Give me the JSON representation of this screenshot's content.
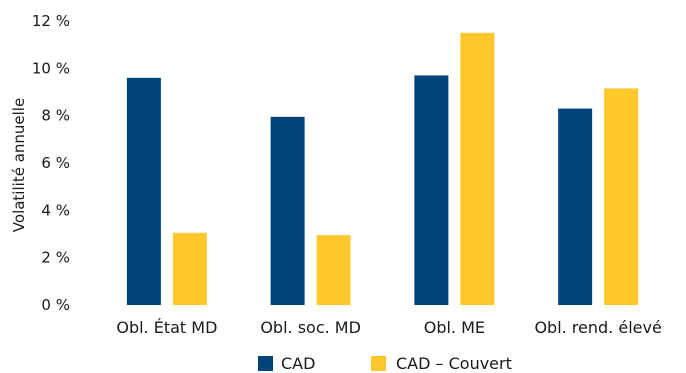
{
  "chart_data": {
    "type": "bar",
    "title": "",
    "xlabel": "",
    "ylabel": "Volatilité annuelle",
    "categories": [
      "Obl. État MD",
      "Obl. soc. MD",
      "Obl. ME",
      "Obl. rend. élevé"
    ],
    "series": [
      {
        "name": "CAD",
        "values": [
          9.6,
          7.95,
          9.7,
          8.3
        ],
        "color": "#00447c"
      },
      {
        "name": "CAD – Couvert",
        "values": [
          3.05,
          2.95,
          11.5,
          9.15
        ],
        "color": "#ffc72c"
      }
    ],
    "ylim": [
      0,
      12
    ],
    "yticks": [
      0,
      2,
      4,
      6,
      8,
      10,
      12
    ],
    "ytick_labels": [
      "0 %",
      "2 %",
      "4 %",
      "6 %",
      "8 %",
      "10 %",
      "12 %"
    ],
    "grid": false,
    "legend_position": "bottom-center"
  }
}
